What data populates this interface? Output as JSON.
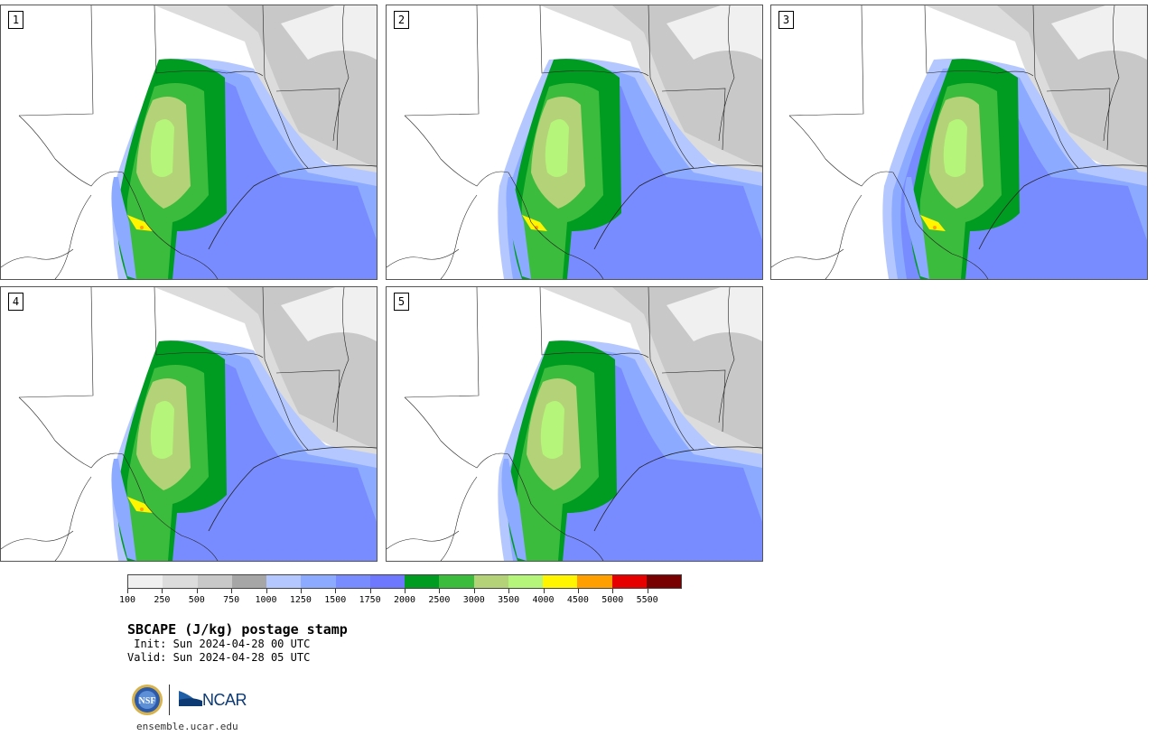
{
  "panels": [
    {
      "label": "1"
    },
    {
      "label": "2"
    },
    {
      "label": "3"
    },
    {
      "label": "4"
    },
    {
      "label": "5"
    }
  ],
  "colorbar": {
    "colors": [
      "#f0f0f0",
      "#dcdcdc",
      "#c8c8c8",
      "#a6a6a6",
      "#b4c8ff",
      "#8caaff",
      "#788cff",
      "#6e78ff",
      "#009c22",
      "#3cbc3c",
      "#b4d278",
      "#b4f57a",
      "#fff500",
      "#ffa000",
      "#e60000",
      "#780000"
    ],
    "labels": [
      "100",
      "250",
      "500",
      "750",
      "1000",
      "1250",
      "1500",
      "1750",
      "2000",
      "2500",
      "3000",
      "3500",
      "4000",
      "4500",
      "5000",
      "5500"
    ]
  },
  "title": "SBCAPE (J/kg) postage stamp",
  "init": " Init: Sun 2024-04-28 00 UTC",
  "valid": "Valid: Sun 2024-04-28 05 UTC",
  "logos": {
    "nsf_text": "NSF",
    "ncar_text": "NCAR"
  },
  "site": "ensemble.ucar.edu"
}
